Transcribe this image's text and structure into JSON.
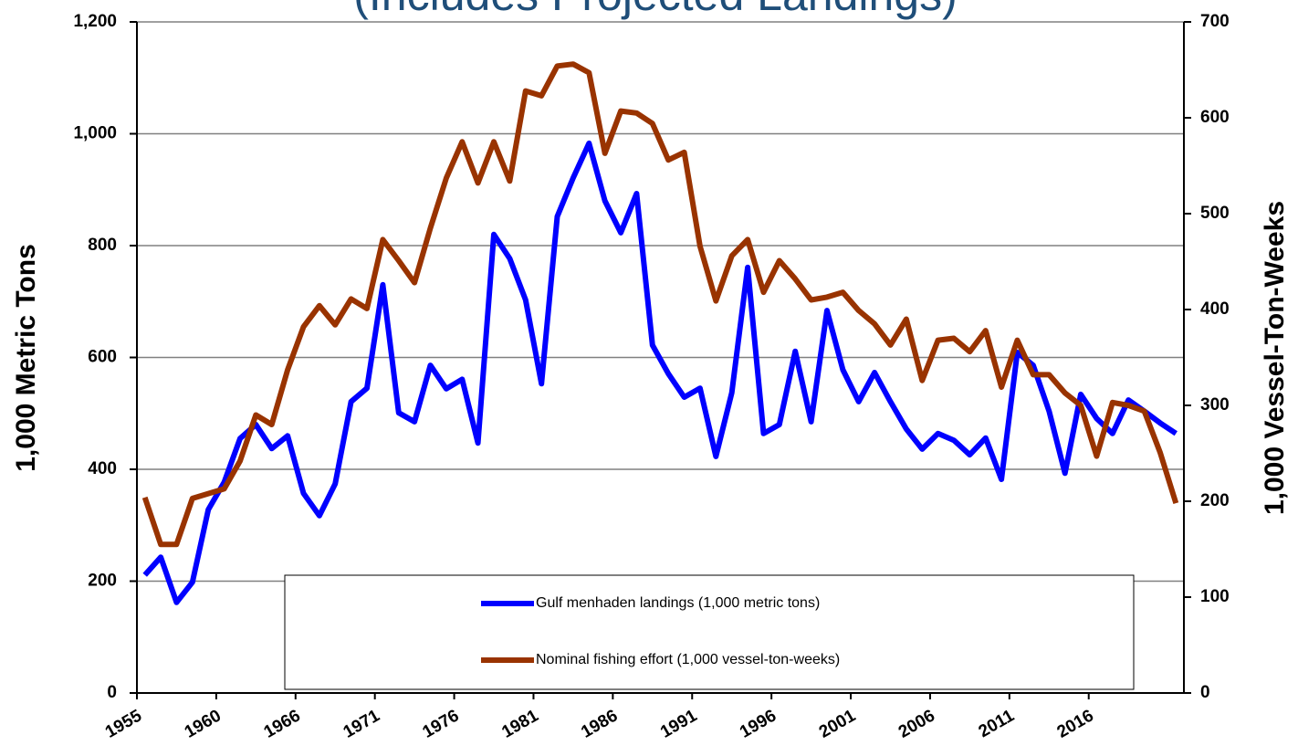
{
  "chart_data": {
    "type": "line",
    "title": "(Includes Projected Landings)",
    "ylabel": "1,000 Metric Tons",
    "y2label": "1,000 Vessel-Ton-Weeks",
    "categories": [
      "1955",
      null,
      null,
      null,
      null,
      "1960",
      null,
      null,
      null,
      null,
      "1966",
      null,
      null,
      null,
      null,
      "1971",
      null,
      null,
      null,
      null,
      "1976",
      null,
      null,
      null,
      null,
      "1981",
      null,
      null,
      null,
      null,
      "1986",
      null,
      null,
      null,
      null,
      "1991",
      null,
      null,
      null,
      null,
      "1996",
      null,
      null,
      null,
      null,
      "2001",
      null,
      null,
      null,
      null,
      "2006",
      null,
      null,
      null,
      null,
      "2011",
      null,
      null,
      null,
      null,
      "2016",
      null,
      null,
      null,
      null,
      null
    ],
    "series": [
      {
        "name": "Gulf menhaden landings (1,000  metric tons)",
        "color": "#0000ff",
        "axis": "y",
        "values": [
          211,
          243,
          162,
          198,
          328,
          377,
          455,
          480,
          437,
          460,
          357,
          317,
          374,
          521,
          545,
          730,
          501,
          485,
          586,
          544,
          561,
          447,
          820,
          777,
          703,
          553,
          852,
          921,
          983,
          880,
          823,
          893,
          622,
          571,
          529,
          545,
          423,
          537,
          761,
          464,
          480,
          611,
          485,
          684,
          578,
          521,
          573,
          521,
          472,
          436,
          464,
          452,
          426,
          456,
          382,
          609,
          586,
          504,
          393,
          534,
          491,
          464,
          524,
          504,
          483,
          464
        ]
      },
      {
        "name": "Nominal fishing effort (1,000 vessel-ton-weeks)",
        "color": "#993300",
        "axis": "y2",
        "values": [
          204,
          155,
          155,
          203,
          208,
          213,
          242,
          290,
          280,
          337,
          382,
          404,
          384,
          411,
          401,
          473,
          451,
          428,
          485,
          537,
          575,
          532,
          575,
          534,
          628,
          623,
          654,
          656,
          647,
          563,
          607,
          605,
          594,
          556,
          564,
          466,
          409,
          456,
          473,
          418,
          451,
          432,
          410,
          413,
          418,
          399,
          385,
          363,
          390,
          326,
          368,
          370,
          356,
          378,
          319,
          368,
          332,
          332,
          313,
          300,
          247,
          303,
          300,
          294,
          251,
          198
        ]
      }
    ],
    "ylim": [
      0,
      1200
    ],
    "yticks": [
      0,
      200,
      400,
      600,
      800,
      {
        "value": 1000,
        "label": "1,000"
      },
      {
        "value": 1200,
        "label": "1,200"
      }
    ],
    "y2lim": [
      0,
      700
    ],
    "y2ticks": [
      0,
      100,
      200,
      300,
      400,
      500,
      600,
      700
    ],
    "grid": true
  }
}
